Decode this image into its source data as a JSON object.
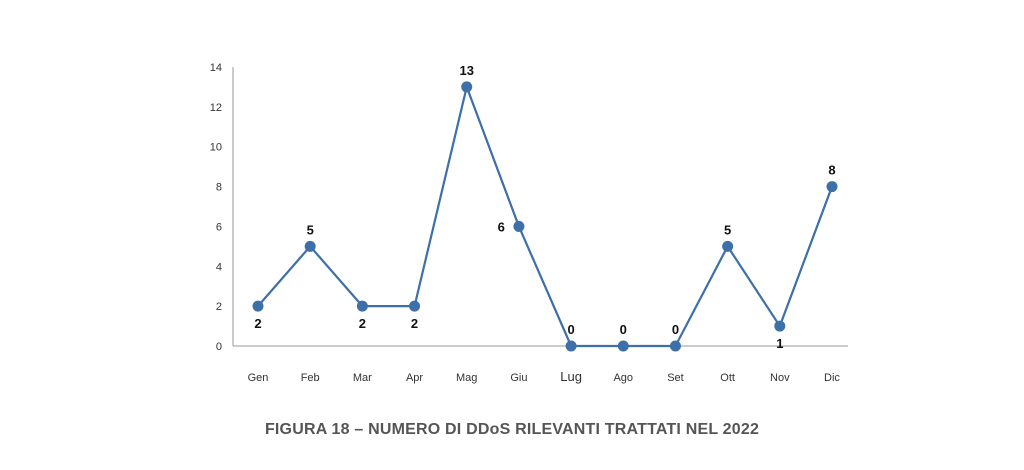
{
  "chart_data": {
    "type": "line",
    "title": "FIGURA 18 – NUMERO DI DDoS RILEVANTI TRATTATI NEL 2022",
    "xlabel": "",
    "ylabel": "",
    "categories": [
      "Gen",
      "Feb",
      "Mar",
      "Apr",
      "Mag",
      "Giu",
      "Lug",
      "Ago",
      "Set",
      "Ott",
      "Nov",
      "Dic"
    ],
    "series": [
      {
        "values": [
          2,
          5,
          2,
          2,
          13,
          6,
          0,
          0,
          0,
          5,
          1,
          8
        ],
        "color": "#3d6fa8"
      }
    ],
    "data_labels": [
      "2",
      "5",
      "2",
      "2",
      "13",
      "6",
      "0",
      "0",
      "0",
      "5",
      "1",
      "8"
    ],
    "ylim": [
      0,
      14
    ],
    "yticks": [
      0,
      2,
      4,
      6,
      8,
      10,
      12,
      14
    ],
    "grid": false,
    "legend": "none"
  }
}
